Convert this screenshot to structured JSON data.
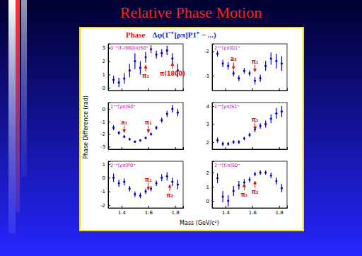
{
  "title": "Relative Phase Motion",
  "panel_title": "Phase",
  "panel_subtitle": "Δφ(1⁻⁺[ρπ]P1⁺ − ...)",
  "y_label": "Phase Difference (rad)",
  "x_label": "Mass (GeV/c²)",
  "chart_data": [
    {
      "type": "scatter",
      "title": "0⁻⁺(f₀(980)π)S0⁺",
      "color": "#0000cc",
      "marker": "dot",
      "tick_labels": "y",
      "xlim": [
        1.3,
        1.86
      ],
      "ylim": [
        -0.2,
        3.3
      ],
      "xticks": [
        1.4,
        1.6,
        1.8
      ],
      "yticks": [
        0,
        1,
        2,
        3
      ],
      "x": [
        1.34,
        1.38,
        1.42,
        1.46,
        1.5,
        1.54,
        1.58,
        1.62,
        1.66,
        1.7,
        1.74,
        1.78,
        1.82
      ],
      "values": [
        0.6,
        0.4,
        0.7,
        1.3,
        2.0,
        1.5,
        2.3,
        2.9,
        2.5,
        2.6,
        2.8,
        2.2,
        1.3
      ],
      "errors": [
        0.3,
        0.35,
        0.4,
        0.5,
        0.6,
        0.5,
        0.4,
        0.3,
        0.3,
        0.3,
        0.35,
        0.4,
        0.5
      ],
      "annotations": [
        {
          "text": "π₁",
          "x": 1.58,
          "y": 1.8
        },
        {
          "text": "π(1800)",
          "x": 1.78,
          "y": 2.0
        }
      ]
    },
    {
      "type": "scatter",
      "title": "2⁺⁺[ρπ]D1⁺",
      "color": "#0000cc",
      "marker": "dot",
      "tick_labels": "y",
      "xlim": [
        1.3,
        1.86
      ],
      "ylim": [
        -3.6,
        -1.7
      ],
      "xticks": [
        1.4,
        1.6,
        1.8
      ],
      "yticks": [
        -3,
        -2
      ],
      "x": [
        1.34,
        1.38,
        1.42,
        1.46,
        1.5,
        1.54,
        1.58,
        1.62,
        1.66,
        1.7,
        1.74,
        1.78,
        1.82
      ],
      "values": [
        -2.1,
        -2.5,
        -2.6,
        -2.9,
        -3.1,
        -2.8,
        -2.9,
        -3.2,
        -3.1,
        -2.6,
        -2.3,
        -2.4,
        -2.5
      ],
      "errors": [
        0.12,
        0.15,
        0.15,
        0.12,
        0.12,
        0.12,
        0.12,
        0.15,
        0.15,
        0.2,
        0.25,
        0.3,
        0.3
      ],
      "annotations": [
        {
          "text": "a₂",
          "x": 1.46,
          "y": -2.8
        },
        {
          "text": "π₁",
          "x": 1.62,
          "y": -2.9
        }
      ]
    },
    {
      "type": "scatter",
      "title": "1⁺⁺[ρπ]S0⁺",
      "color": "#0000cc",
      "marker": "dot",
      "tick_labels": "y",
      "xlim": [
        1.3,
        1.86
      ],
      "ylim": [
        -3.2,
        0.5
      ],
      "xticks": [
        1.4,
        1.6,
        1.8
      ],
      "yticks": [
        -3,
        -2,
        -1,
        0
      ],
      "x": [
        1.34,
        1.38,
        1.42,
        1.46,
        1.5,
        1.54,
        1.58,
        1.62,
        1.66,
        1.7,
        1.74,
        1.78,
        1.82
      ],
      "values": [
        -1.5,
        -1.9,
        -2.2,
        -2.4,
        -2.6,
        -2.5,
        -2.3,
        -2.0,
        -1.5,
        -0.9,
        -0.4,
        0.0,
        -0.3
      ],
      "errors": [
        0.2,
        0.15,
        0.12,
        0.1,
        0.1,
        0.1,
        0.1,
        0.12,
        0.15,
        0.2,
        0.25,
        0.3,
        0.3
      ],
      "annotations": [
        {
          "text": "a₁",
          "x": 1.42,
          "y": -2.0
        },
        {
          "text": "π₁",
          "x": 1.6,
          "y": -2.0
        }
      ]
    },
    {
      "type": "scatter",
      "title": "1⁺⁺[ρπ]S1⁺",
      "color": "#0000cc",
      "marker": "dot",
      "tick_labels": "y",
      "xlim": [
        1.3,
        1.86
      ],
      "ylim": [
        1.6,
        4.2
      ],
      "xticks": [
        1.4,
        1.6,
        1.8
      ],
      "yticks": [
        2,
        3,
        4
      ],
      "x": [
        1.34,
        1.38,
        1.42,
        1.46,
        1.5,
        1.54,
        1.58,
        1.62,
        1.66,
        1.7,
        1.74,
        1.78,
        1.82
      ],
      "values": [
        2.1,
        1.9,
        1.9,
        2.0,
        2.0,
        2.2,
        2.4,
        2.7,
        2.9,
        3.0,
        3.3,
        3.6,
        3.7
      ],
      "errors": [
        0.15,
        0.12,
        0.1,
        0.1,
        0.1,
        0.1,
        0.12,
        0.15,
        0.15,
        0.2,
        0.25,
        0.3,
        0.3
      ],
      "annotations": [
        {
          "text": "π₁",
          "x": 1.62,
          "y": 2.6
        }
      ]
    },
    {
      "type": "scatter",
      "title": "2⁻⁺[ρπ]P0⁺",
      "color": "#0000cc",
      "marker": "dot",
      "xlim": [
        1.3,
        1.86
      ],
      "ylim": [
        -2.2,
        1.2
      ],
      "xticks": [
        1.4,
        1.6,
        1.8
      ],
      "yticks": [
        -2,
        -1,
        0,
        1
      ],
      "x": [
        1.34,
        1.38,
        1.42,
        1.46,
        1.5,
        1.54,
        1.58,
        1.62,
        1.66,
        1.7,
        1.74,
        1.78,
        1.82
      ],
      "values": [
        0.0,
        -0.4,
        -0.3,
        -0.8,
        -1.2,
        -1.3,
        -1.0,
        -0.8,
        -0.4,
        0.0,
        0.1,
        -0.3,
        -0.5
      ],
      "errors": [
        0.3,
        0.25,
        0.25,
        0.2,
        0.2,
        0.2,
        0.2,
        0.2,
        0.2,
        0.25,
        0.3,
        0.3,
        0.35
      ],
      "annotations": [
        {
          "text": "π₁",
          "x": 1.6,
          "y": -1.0
        },
        {
          "text": "π₂",
          "x": 1.76,
          "y": -0.4
        }
      ]
    },
    {
      "type": "scatter",
      "title": "2⁻⁺[f₂π]S0⁺",
      "color": "#0000cc",
      "marker": "dot",
      "xlim": [
        1.3,
        1.86
      ],
      "ylim": [
        -0.5,
        2.8
      ],
      "xticks": [
        1.4,
        1.6,
        1.8
      ],
      "yticks": [
        0,
        1,
        2
      ],
      "x": [
        1.34,
        1.38,
        1.42,
        1.46,
        1.5,
        1.54,
        1.58,
        1.62,
        1.66,
        1.7,
        1.74,
        1.78,
        1.82
      ],
      "values": [
        1.6,
        0.3,
        0.0,
        0.7,
        1.1,
        1.3,
        1.5,
        1.9,
        2.0,
        2.0,
        1.8,
        1.4,
        0.9
      ],
      "errors": [
        0.35,
        0.4,
        0.4,
        0.35,
        0.3,
        0.25,
        0.2,
        0.15,
        0.15,
        0.15,
        0.2,
        0.25,
        0.3
      ],
      "annotations": [
        {
          "text": "π₁",
          "x": 1.54,
          "y": 1.3
        },
        {
          "text": "π₂",
          "x": 1.62,
          "y": 1.5
        }
      ]
    }
  ]
}
